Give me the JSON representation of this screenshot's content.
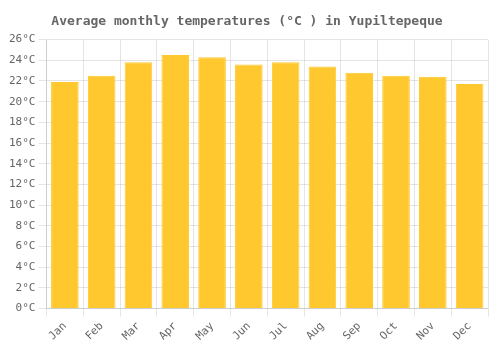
{
  "chart_data": {
    "type": "bar",
    "title": "Average monthly temperatures (°C ) in Yupiltepeque",
    "categories": [
      "Jan",
      "Feb",
      "Mar",
      "Apr",
      "May",
      "Jun",
      "Jul",
      "Aug",
      "Sep",
      "Oct",
      "Nov",
      "Dec"
    ],
    "values": [
      21.9,
      22.5,
      23.8,
      24.5,
      24.3,
      23.6,
      23.8,
      23.4,
      22.8,
      22.5,
      22.4,
      21.7
    ],
    "color": "#FFC82E",
    "ylim": [
      0,
      26
    ],
    "yticks": [
      {
        "value": 0,
        "label": "0°C"
      },
      {
        "value": 2,
        "label": "2°C"
      },
      {
        "value": 4,
        "label": "4°C"
      },
      {
        "value": 6,
        "label": "6°C"
      },
      {
        "value": 8,
        "label": "8°C"
      },
      {
        "value": 10,
        "label": "10°C"
      },
      {
        "value": 12,
        "label": "12°C"
      },
      {
        "value": 14,
        "label": "14°C"
      },
      {
        "value": 16,
        "label": "16°C"
      },
      {
        "value": 18,
        "label": "18°C"
      },
      {
        "value": 20,
        "label": "20°C"
      },
      {
        "value": 22,
        "label": "22°C"
      },
      {
        "value": 24,
        "label": "24°C"
      },
      {
        "value": 26,
        "label": "26°C"
      }
    ],
    "grid": true
  }
}
